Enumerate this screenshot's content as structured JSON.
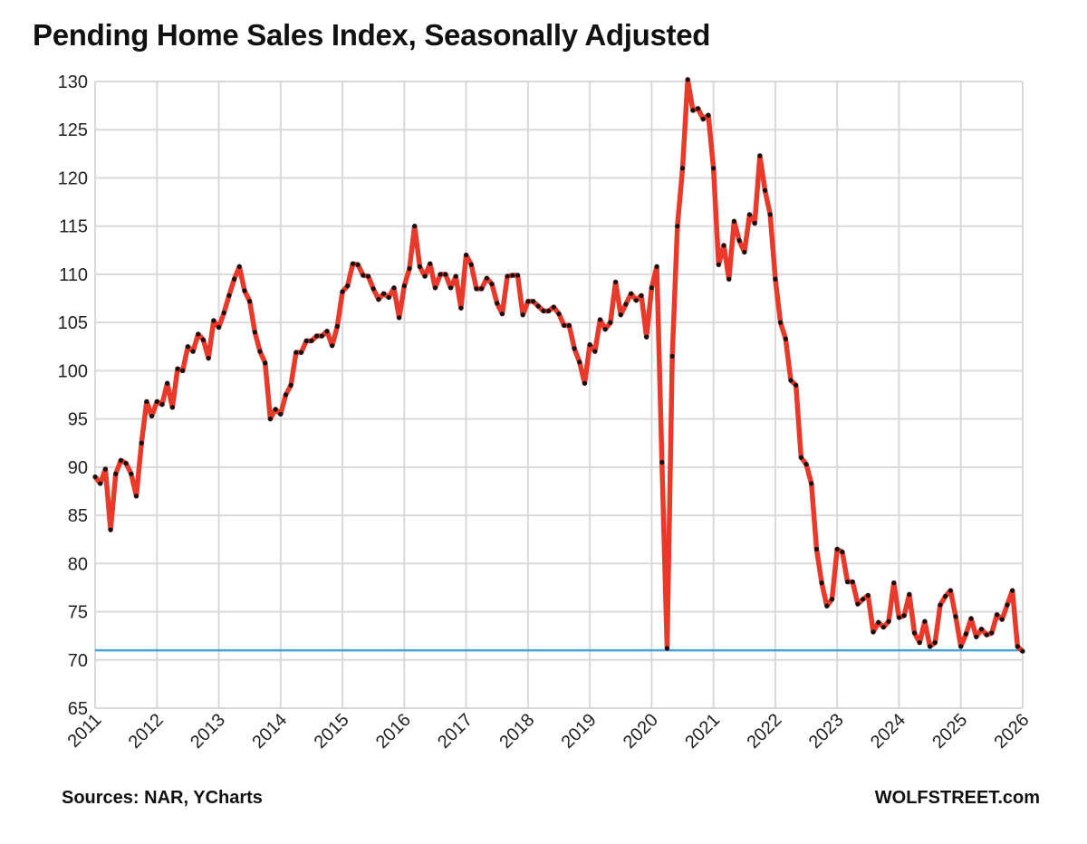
{
  "chart_data": {
    "type": "line",
    "title": "Pending Home Sales Index, Seasonally Adjusted",
    "xlabel": "",
    "ylabel": "",
    "x_start": "2011-01",
    "frequency": "monthly",
    "xlim": [
      2011,
      2026
    ],
    "ylim": [
      65,
      130
    ],
    "x_ticks": [
      "2011",
      "2012",
      "2013",
      "2014",
      "2015",
      "2016",
      "2017",
      "2018",
      "2019",
      "2020",
      "2021",
      "2022",
      "2023",
      "2024",
      "2025",
      "2026"
    ],
    "y_ticks": [
      65,
      70,
      75,
      80,
      85,
      90,
      95,
      100,
      105,
      110,
      115,
      120,
      125,
      130
    ],
    "grid": true,
    "legend": "none",
    "series": [
      {
        "color": "#e8392a",
        "marker_color": "#111111",
        "values": [
          89,
          88.3,
          89.8,
          83.5,
          89.3,
          90.7,
          90.4,
          89.3,
          87,
          92.5,
          96.8,
          95.3,
          96.8,
          96.5,
          98.7,
          96.2,
          100.2,
          100,
          102.5,
          102,
          103.8,
          103.2,
          101.3,
          105.2,
          104.5,
          106,
          107.8,
          109.5,
          110.8,
          108.3,
          107.2,
          104,
          102,
          100.8,
          95,
          96,
          95.5,
          97.5,
          98.5,
          101.9,
          101.9,
          103.1,
          103.1,
          103.6,
          103.6,
          104.1,
          102.6,
          104.6,
          108.2,
          108.8,
          111.1,
          111,
          109.9,
          109.8,
          108.5,
          107.4,
          108,
          107.6,
          108.6,
          105.5,
          108.8,
          110.6,
          115,
          110.8,
          109.8,
          111.1,
          108.6,
          110,
          110,
          108.6,
          109.8,
          106.5,
          112,
          111,
          108.5,
          108.5,
          109.6,
          109,
          107,
          105.9,
          109.8,
          109.9,
          109.9,
          105.8,
          107.2,
          107.2,
          106.7,
          106.2,
          106.2,
          106.6,
          105.9,
          104.7,
          104.7,
          102.3,
          100.9,
          98.7,
          102.7,
          102,
          105.3,
          104.3,
          105,
          109.2,
          105.8,
          106.9,
          108,
          107.3,
          107.8,
          103.5,
          108.6,
          110.8,
          90.5,
          71.2,
          101.5,
          115,
          121,
          130.2,
          127,
          127.2,
          126.1,
          126.5,
          121,
          111,
          113,
          109.5,
          115.5,
          113.5,
          112.3,
          116.2,
          115.3,
          122.3,
          118.7,
          116.2,
          109.5,
          105,
          103.3,
          99,
          98.5,
          91,
          90.3,
          88.3,
          81.5,
          78,
          75.6,
          76.3,
          81.5,
          81.2,
          78.1,
          78.1,
          75.8,
          76.3,
          76.7,
          72.9,
          73.9,
          73.4,
          74,
          78,
          74.4,
          74.6,
          76.8,
          72.8,
          71.8,
          74,
          71.4,
          71.8,
          75.7,
          76.6,
          77.2,
          74.5,
          71.4,
          72.7,
          74.3,
          72.4,
          73.2,
          72.6,
          72.8,
          74.7,
          74.2,
          75.7,
          77.2,
          71.4,
          70.9
        ]
      }
    ],
    "reference_line": {
      "value": 71,
      "color": "#4aa3d8"
    }
  },
  "footer": {
    "source": "Sources: NAR, YCharts",
    "brand": "WOLFSTREET.com"
  }
}
